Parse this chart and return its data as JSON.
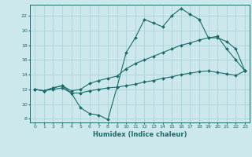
{
  "xlabel": "Humidex (Indice chaleur)",
  "background_color": "#cce8ec",
  "grid_color": "#aad4d8",
  "line_color": "#1a6b6b",
  "xlim": [
    -0.5,
    23.5
  ],
  "ylim": [
    7.5,
    23.5
  ],
  "yticks": [
    8,
    10,
    12,
    14,
    16,
    18,
    20,
    22
  ],
  "xticks": [
    0,
    1,
    2,
    3,
    4,
    5,
    6,
    7,
    8,
    9,
    10,
    11,
    12,
    13,
    14,
    15,
    16,
    17,
    18,
    19,
    20,
    21,
    22,
    23
  ],
  "line_high_x": [
    0,
    1,
    2,
    3,
    4,
    5,
    6,
    7,
    8,
    9,
    10,
    11,
    12,
    13,
    14,
    15,
    16,
    17,
    18,
    19,
    20,
    21,
    22,
    23
  ],
  "line_high_y": [
    12.0,
    11.8,
    12.2,
    12.5,
    11.5,
    9.5,
    8.7,
    8.5,
    7.9,
    12.3,
    17.0,
    19.0,
    21.5,
    21.0,
    20.5,
    22.0,
    23.0,
    22.2,
    21.5,
    19.0,
    19.2,
    17.5,
    16.0,
    14.5
  ],
  "line_mid_x": [
    0,
    1,
    2,
    3,
    4,
    5,
    6,
    7,
    8,
    9,
    10,
    11,
    12,
    13,
    14,
    15,
    16,
    17,
    18,
    19,
    20,
    21,
    22,
    23
  ],
  "line_mid_y": [
    12.0,
    11.8,
    12.2,
    12.5,
    11.8,
    12.0,
    12.8,
    13.2,
    13.5,
    13.8,
    14.8,
    15.5,
    16.0,
    16.5,
    17.0,
    17.5,
    18.0,
    18.3,
    18.7,
    19.0,
    19.0,
    18.5,
    17.5,
    14.5
  ],
  "line_low_x": [
    0,
    1,
    2,
    3,
    4,
    5,
    6,
    7,
    8,
    9,
    10,
    11,
    12,
    13,
    14,
    15,
    16,
    17,
    18,
    19,
    20,
    21,
    22,
    23
  ],
  "line_low_y": [
    12.0,
    11.8,
    12.0,
    12.2,
    11.5,
    11.5,
    11.8,
    12.0,
    12.2,
    12.3,
    12.5,
    12.7,
    13.0,
    13.2,
    13.5,
    13.7,
    14.0,
    14.2,
    14.4,
    14.5,
    14.3,
    14.1,
    13.9,
    14.5
  ]
}
